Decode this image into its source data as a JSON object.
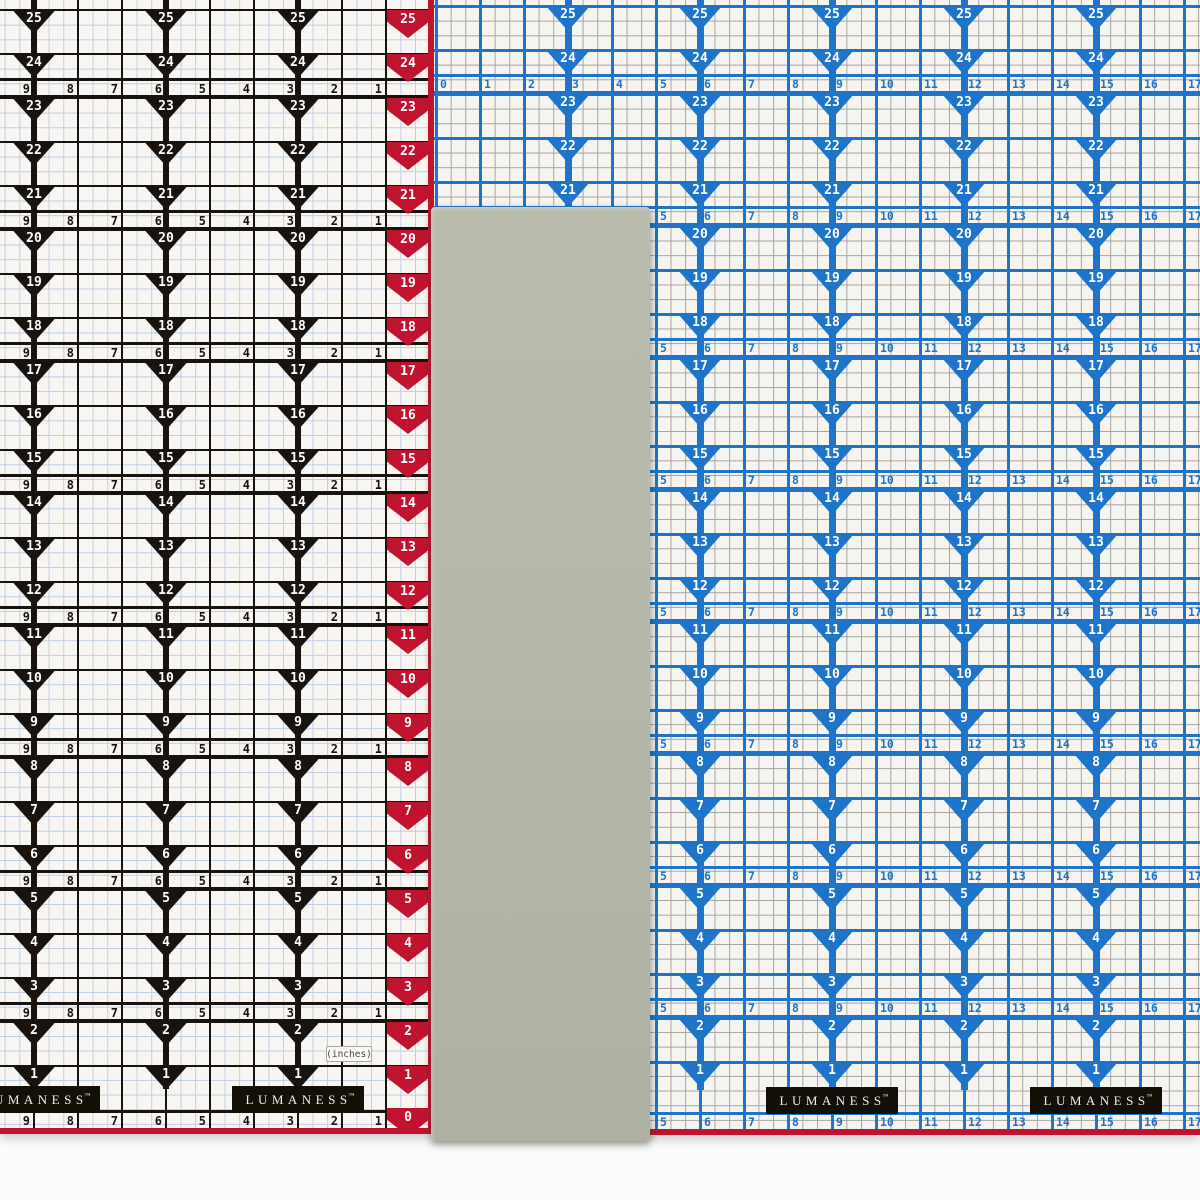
{
  "brand": {
    "name": "LUMANESS",
    "trademark": "™"
  },
  "labels": {
    "units": "(inches)"
  },
  "colors": {
    "left_ink": "#18130e",
    "left_fine_grid": "#bccde6",
    "left_bg": "#f8f6f2",
    "red": "#c11330",
    "blue": "#1e74c8",
    "right_fine_grid": "#a5a49e",
    "right_bg": "#f6f4f0",
    "object_gray": "#b7b9ab",
    "number_on_dark": "#ffffff",
    "bar_bg": "#131008"
  },
  "left_mat": {
    "arrow_values": [
      25,
      24,
      23,
      22,
      21,
      20,
      19,
      18,
      17,
      16,
      15,
      14,
      13,
      12,
      11,
      10,
      9,
      8,
      7,
      6,
      5,
      4,
      3,
      2,
      1
    ],
    "edge_arrow_values": [
      25,
      24,
      23,
      22,
      21,
      20,
      19,
      18,
      17,
      16,
      15,
      14,
      13,
      12,
      11,
      10,
      9,
      8,
      7,
      6,
      5,
      4,
      3,
      2,
      1,
      0
    ],
    "ruler_values": [
      9,
      8,
      7,
      6,
      5,
      4,
      3,
      2,
      1
    ]
  },
  "right_mat": {
    "arrow_values": [
      25,
      24,
      23,
      22,
      21,
      20,
      19,
      18,
      17,
      16,
      15,
      14,
      13,
      12,
      11,
      10,
      9,
      8,
      7,
      6,
      5,
      4,
      3,
      2,
      1
    ],
    "ruler_values": [
      0,
      1,
      2,
      3,
      4,
      5,
      6,
      7,
      8,
      9,
      10,
      11,
      12,
      13,
      14,
      15,
      16,
      17
    ]
  }
}
